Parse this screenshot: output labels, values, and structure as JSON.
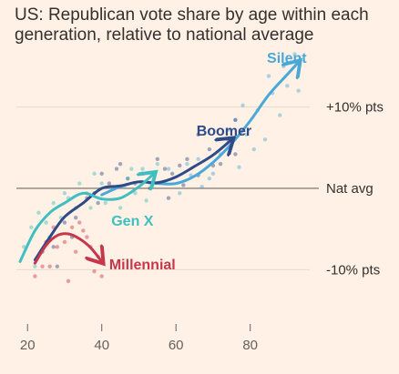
{
  "title": "US: Republican vote share by age within each generation, relative to national average",
  "colors": {
    "background": "#fff1e5",
    "silent": "#4aa8d9",
    "boomer": "#2e4a87",
    "genx": "#3fbfbf",
    "millennial": "#c7374b",
    "reference_line": "#9c938c",
    "grid": "#e7d8ca"
  },
  "chart_data": {
    "type": "line",
    "title": "US: Republican vote share by age within each generation, relative to national average",
    "xlabel": "",
    "ylabel": "",
    "xlim": [
      17,
      98
    ],
    "ylim": [
      -16,
      17
    ],
    "x_ticks": [
      20,
      40,
      60,
      80
    ],
    "reference_lines": [
      {
        "value": 10,
        "label": "+10% pts",
        "style": "light-grid"
      },
      {
        "value": 0,
        "label": "Nat avg",
        "style": "solid"
      },
      {
        "value": -10,
        "label": "-10% pts",
        "style": "light-grid"
      }
    ],
    "grid": false,
    "legend": "direct-labels",
    "series": [
      {
        "name": "Silent",
        "color": "#4aa8d9",
        "x": [
          40,
          45,
          50,
          55,
          60,
          65,
          70,
          75,
          80,
          85,
          90,
          93
        ],
        "y": [
          -0.8,
          0.2,
          0.8,
          0.6,
          0.6,
          1.5,
          3.2,
          5.5,
          8.3,
          11.5,
          14,
          15.5
        ],
        "label_anchor": [
          85,
          15
        ]
      },
      {
        "name": "Boomer",
        "color": "#2e4a87",
        "x": [
          22,
          26,
          30,
          35,
          40,
          45,
          50,
          55,
          60,
          65,
          70,
          75
        ],
        "y": [
          -8.8,
          -6,
          -3.5,
          -1.8,
          0,
          0.3,
          0.8,
          0.7,
          1.4,
          2.7,
          4.1,
          6
        ],
        "label_anchor": [
          67,
          5.8
        ]
      },
      {
        "name": "Gen X",
        "color": "#3fbfbf",
        "x": [
          18,
          22,
          26,
          30,
          35,
          40,
          45,
          50,
          54
        ],
        "y": [
          -9,
          -5.2,
          -3,
          -1.8,
          -0.6,
          -1.3,
          -1.2,
          0.2,
          1.8
        ],
        "label_anchor": [
          47,
          -2.6
        ]
      },
      {
        "name": "Millennial",
        "color": "#c7374b",
        "x": [
          22,
          25,
          28,
          31,
          34,
          37,
          40
        ],
        "y": [
          -9.2,
          -7,
          -5.8,
          -5.6,
          -6.2,
          -7.3,
          -9
        ],
        "label_anchor": [
          42,
          -9.3
        ]
      }
    ],
    "scatter_points": {
      "Silent": {
        "x": [
          58,
          61,
          64,
          66,
          69,
          72,
          74,
          77,
          79,
          82,
          84,
          86,
          88,
          90,
          92,
          63,
          67,
          71,
          76,
          81,
          85,
          89,
          93,
          70,
          78
        ],
        "y": [
          2.4,
          -0.6,
          1.6,
          3.6,
          1.2,
          4.2,
          7.2,
          2.6,
          6.6,
          9.6,
          6.0,
          11.7,
          9.0,
          12.6,
          16.5,
          3.0,
          0.2,
          6.0,
          8.4,
          4.8,
          13.8,
          15.0,
          12.0,
          1.8,
          10.2
        ]
      },
      "Boomer": {
        "x": [
          24,
          27,
          30,
          33,
          36,
          38,
          40,
          42,
          44,
          47,
          49,
          51,
          53,
          55,
          57,
          59,
          61,
          63,
          66,
          69,
          72,
          74,
          76,
          32,
          45,
          62,
          70,
          28,
          39,
          58,
          66,
          76
        ],
        "y": [
          -7.8,
          -7.2,
          -4.2,
          -3.6,
          -1.2,
          -0.6,
          1.8,
          0.6,
          2.4,
          1.2,
          0.6,
          1.8,
          0.0,
          3.6,
          2.4,
          1.8,
          2.8,
          3.6,
          1.6,
          4.8,
          3.0,
          6.0,
          8.4,
          -6.0,
          3.0,
          0.4,
          2.8,
          -9.6,
          -1.8,
          -1.2,
          6.6,
          4.2
        ]
      },
      "GenX": {
        "x": [
          19,
          21,
          23,
          25,
          27,
          29,
          31,
          34,
          36,
          38,
          41,
          43,
          45,
          47,
          49,
          51,
          53,
          55,
          26,
          33,
          40,
          46,
          52,
          22,
          30,
          37,
          48
        ],
        "y": [
          -7.2,
          -4.8,
          -3.0,
          -4.2,
          -1.8,
          -3.6,
          -1.2,
          0.6,
          -0.6,
          1.8,
          -1.8,
          0.0,
          -2.4,
          1.2,
          -0.6,
          2.4,
          0.6,
          3.0,
          -6.0,
          -2.4,
          0.6,
          0.2,
          -1.5,
          -9.6,
          -0.6,
          -2.4,
          2.4
        ]
      },
      "Millennial": {
        "x": [
          22,
          24,
          26,
          28,
          30,
          32,
          34,
          36,
          38,
          40,
          27,
          33,
          39,
          25,
          31,
          37,
          35
        ],
        "y": [
          -10.8,
          -9.6,
          -9.6,
          -7.2,
          -6.6,
          -4.8,
          -4.2,
          -6.0,
          -10.2,
          -10.8,
          -4.8,
          -7.8,
          -8.4,
          -6.6,
          -11.4,
          -7.2,
          -5.2
        ]
      }
    }
  }
}
